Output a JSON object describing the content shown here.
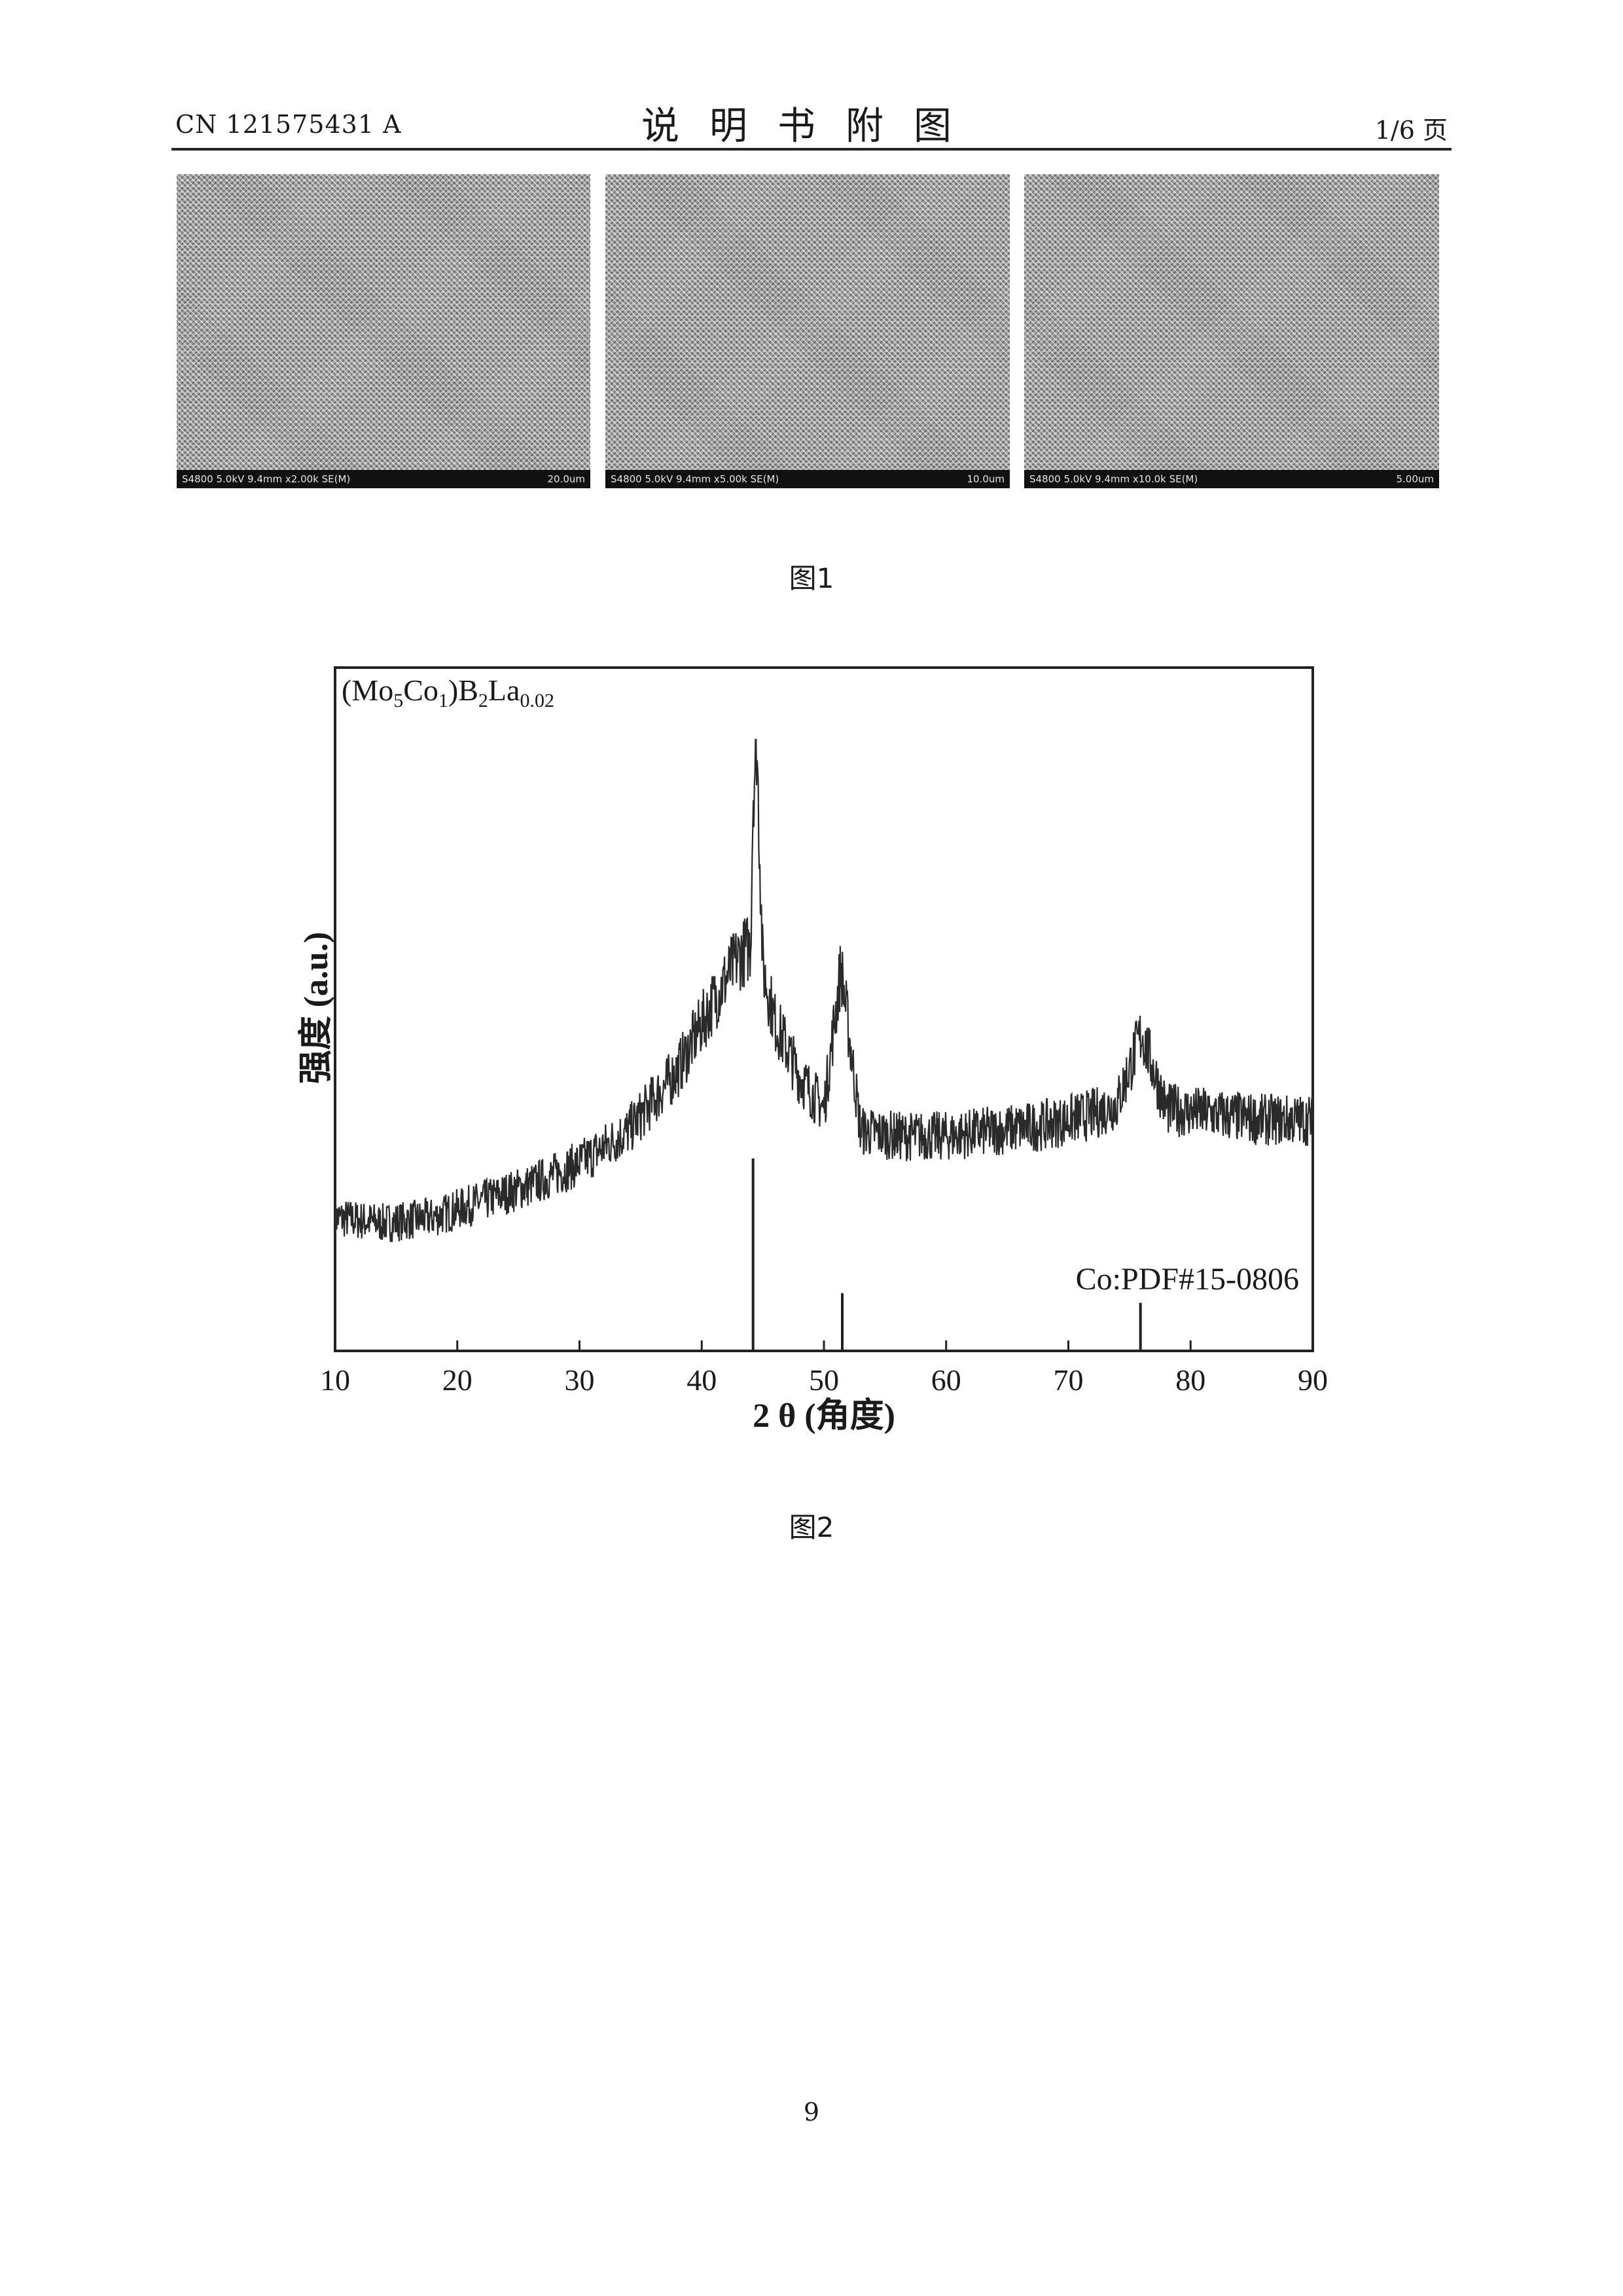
{
  "header": {
    "publication_number": "CN 121575431 A",
    "title": "说明书附图",
    "page_indicator": "1/6 页"
  },
  "figure1": {
    "caption": "图1",
    "panels": [
      {
        "info": "S4800 5.0kV 9.4mm x2.00k SE(M)",
        "scale": "20.0um"
      },
      {
        "info": "S4800 5.0kV 9.4mm x5.00k SE(M)",
        "scale": "10.0um"
      },
      {
        "info": "S4800 5.0kV 9.4mm x10.0k SE(M)",
        "scale": "5.00um"
      }
    ]
  },
  "figure2": {
    "caption": "图2",
    "chart_data": {
      "type": "line",
      "xlabel": "2 θ (角度)",
      "ylabel": "强度 (a.u.)",
      "xlim": [
        10,
        90
      ],
      "xticks": [
        10,
        20,
        30,
        40,
        50,
        60,
        70,
        80,
        90
      ],
      "y_ticks_shown": false,
      "grid": false,
      "series": [
        {
          "name": "(Mo5Co1)B2La0.02",
          "x": [
            10,
            14,
            18,
            22,
            26,
            30,
            34,
            38,
            41,
            43,
            44,
            44.2,
            44.5,
            45,
            46,
            48,
            50,
            51.4,
            53,
            56,
            60,
            64,
            68,
            72,
            74,
            76,
            78,
            82,
            86,
            90
          ],
          "y": [
            12,
            11,
            12,
            15,
            18,
            22,
            28,
            39,
            52,
            60,
            62,
            90,
            100,
            58,
            48,
            38,
            32,
            58,
            28,
            27,
            27,
            28,
            29,
            31,
            33,
            46,
            32,
            31,
            30,
            30
          ]
        }
      ],
      "reference": {
        "name": "Co:PDF#15-0806",
        "peaks": [
          {
            "x": 44.2,
            "intensity": 100
          },
          {
            "x": 51.5,
            "intensity": 30
          },
          {
            "x": 75.9,
            "intensity": 25
          }
        ]
      }
    }
  },
  "page_number": "9"
}
